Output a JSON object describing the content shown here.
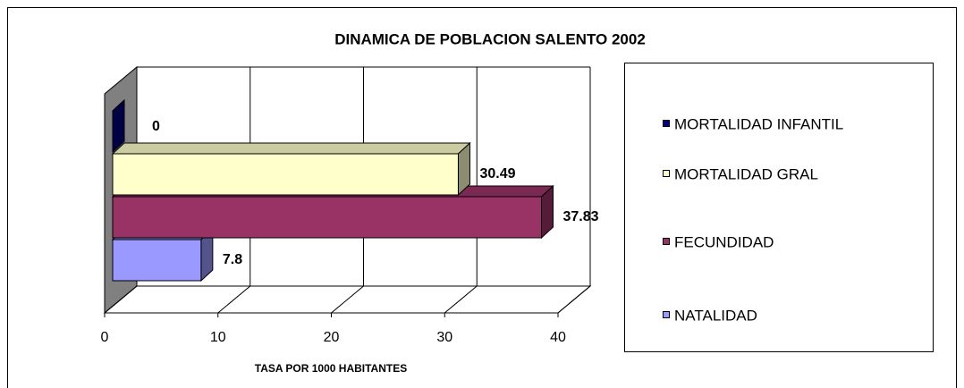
{
  "chart_data": {
    "type": "bar",
    "orientation": "horizontal",
    "title": "DINAMICA DE POBLACION  SALENTO  2002",
    "xlabel": "TASA POR 1000 HABITANTES",
    "xlim": [
      0,
      40
    ],
    "xticks": [
      0,
      10,
      20,
      30,
      40
    ],
    "grid": true,
    "legend": "right",
    "series": [
      {
        "name": "MORTALIDAD INFANTIL",
        "color": "#000080",
        "values": [
          0
        ]
      },
      {
        "name": "MORTALIDAD GRAL",
        "color": "#FFFFCC",
        "values": [
          30.49
        ]
      },
      {
        "name": "FECUNDIDAD",
        "color": "#993366",
        "values": [
          37.83
        ]
      },
      {
        "name": "NATALIDAD",
        "color": "#9999FF",
        "values": [
          7.8
        ]
      }
    ]
  }
}
